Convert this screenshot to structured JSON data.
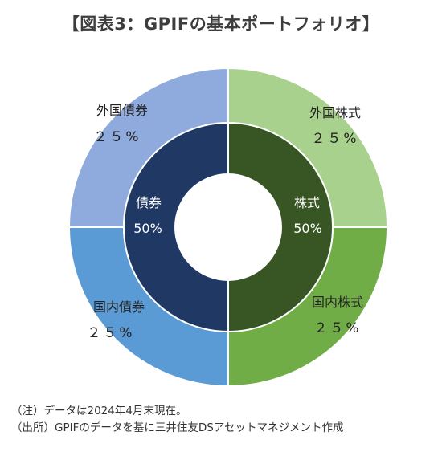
{
  "title": "【図表3：GPIFの基本ポートフォリオ】",
  "colors": {
    "foreign_bonds": "#8faadc",
    "domestic_bonds": "#5b9bd5",
    "foreign_stocks": "#a9d18e",
    "domestic_stocks": "#70ad47",
    "bonds_inner": "#203864",
    "stocks_inner": "#375623"
  },
  "chart_data": {
    "type": "pie",
    "style": "nested-donut",
    "inner_ring": [
      {
        "name": "債券",
        "label": "50%",
        "value": 50,
        "color": "#203864"
      },
      {
        "name": "株式",
        "label": "50%",
        "value": 50,
        "color": "#375623"
      }
    ],
    "outer_ring": [
      {
        "name": "外国株式",
        "label": "２５%",
        "value": 25,
        "color": "#a9d18e"
      },
      {
        "name": "国内株式",
        "label": "２５%",
        "value": 25,
        "color": "#70ad47"
      },
      {
        "name": "国内債券",
        "label": "２５%",
        "value": 25,
        "color": "#5b9bd5"
      },
      {
        "name": "外国債券",
        "label": "２５%",
        "value": 25,
        "color": "#8faadc"
      }
    ]
  },
  "notes": [
    "（注）データは2024年4月末現在。",
    "（出所）GPIFのデータを基に三井住友DSアセットマネジメント作成"
  ]
}
